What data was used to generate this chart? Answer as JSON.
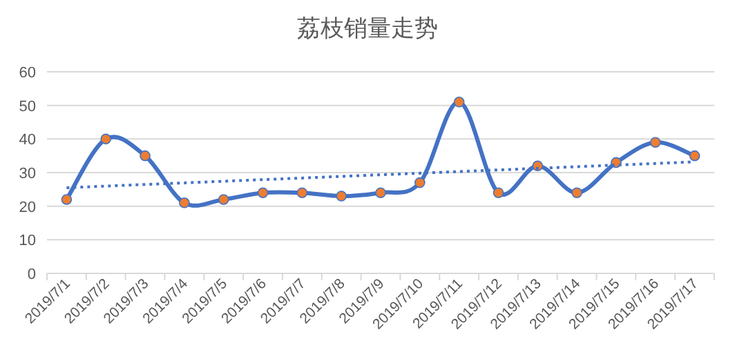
{
  "chart_data": {
    "type": "line",
    "title": "荔枝销量走势",
    "categories": [
      "2019/7/1",
      "2019/7/2",
      "2019/7/3",
      "2019/7/4",
      "2019/7/5",
      "2019/7/6",
      "2019/7/7",
      "2019/7/8",
      "2019/7/9",
      "2019/7/10",
      "2019/7/11",
      "2019/7/12",
      "2019/7/13",
      "2019/7/14",
      "2019/7/15",
      "2019/7/16",
      "2019/7/17"
    ],
    "ylim": [
      0,
      60
    ],
    "yticks": [
      0,
      10,
      20,
      30,
      40,
      50,
      60
    ],
    "grid": "y",
    "series": [
      {
        "color": "#4472c4",
        "marker": "circle",
        "colors": [
          "#ed7d31",
          "#ed7d31",
          "#ed7d31",
          "#ed7d31",
          "#ed7d31",
          "#ed7d31",
          "#ed7d31",
          "#ed7d31",
          "#ed7d31",
          "#ed7d31",
          "#ed7d31",
          "#ed7d31",
          "#ed7d31",
          "#ed7d31",
          "#ed7d31",
          "#ed7d31",
          "#ed7d31"
        ],
        "line_style": "solid",
        "values": [
          22,
          40,
          35,
          21,
          22,
          24,
          24,
          23,
          24,
          27,
          51,
          24,
          32,
          24,
          33,
          39,
          35
        ]
      },
      {
        "type": "line",
        "color": "#4472c4",
        "marker": "none",
        "line_style": "dotted",
        "x": [
          "2019/7/1",
          "2019/7/17"
        ],
        "values": [
          25.5,
          33.2
        ]
      }
    ]
  }
}
